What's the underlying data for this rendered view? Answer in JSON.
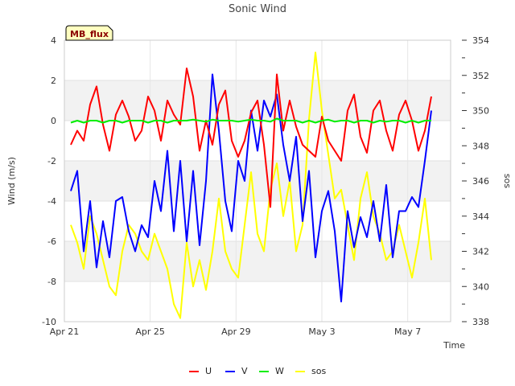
{
  "chart_data": {
    "type": "line",
    "title": "Sonic Wind",
    "badge": "MB_flux",
    "xlabel": "Time",
    "ylabel": "Wind (m/s)",
    "ylabel_right": "sos",
    "x_ticks": [
      {
        "day": 0,
        "label": "Apr 21"
      },
      {
        "day": 4,
        "label": "Apr 25"
      },
      {
        "day": 8,
        "label": "Apr 29"
      },
      {
        "day": 12,
        "label": "May 3"
      },
      {
        "day": 16,
        "label": "May 7"
      }
    ],
    "xlim": [
      0,
      18
    ],
    "ylim": [
      -10,
      4
    ],
    "ylim_right": [
      338,
      354
    ],
    "y_ticks": [
      4,
      2,
      0,
      -2,
      -4,
      -6,
      -8,
      -10
    ],
    "y_ticks_right": [
      354,
      352,
      350,
      348,
      346,
      344,
      342,
      340,
      338
    ],
    "grid_bands": [
      [
        -8,
        -6
      ],
      [
        -4,
        -2
      ],
      [
        0,
        2
      ]
    ],
    "legend": [
      "U",
      "V",
      "W",
      "sos"
    ],
    "series": [
      {
        "name": "U",
        "color": "#ff0000",
        "axis": "left",
        "x": [
          0.3,
          0.6,
          0.9,
          1.2,
          1.5,
          1.8,
          2.1,
          2.4,
          2.7,
          3.0,
          3.3,
          3.6,
          3.9,
          4.2,
          4.5,
          4.8,
          5.1,
          5.4,
          5.7,
          6.0,
          6.3,
          6.6,
          6.9,
          7.2,
          7.5,
          7.8,
          8.1,
          8.4,
          8.7,
          9.0,
          9.3,
          9.6,
          9.9,
          10.2,
          10.5,
          10.8,
          11.1,
          11.4,
          11.7,
          12.0,
          12.3,
          12.6,
          12.9,
          13.2,
          13.5,
          13.8,
          14.1,
          14.4,
          14.7,
          15.0,
          15.3,
          15.6,
          15.9,
          16.2,
          16.5,
          16.8,
          17.1
        ],
        "values": [
          -1.2,
          -0.5,
          -1.0,
          0.8,
          1.7,
          -0.2,
          -1.5,
          0.3,
          1.0,
          0.2,
          -1.0,
          -0.5,
          1.2,
          0.5,
          -1.0,
          1.0,
          0.3,
          -0.2,
          2.6,
          1.2,
          -1.5,
          0.0,
          -1.2,
          0.8,
          1.5,
          -1.0,
          -1.8,
          -1.0,
          0.4,
          1.0,
          -1.2,
          -4.3,
          2.3,
          -0.5,
          1.0,
          -0.3,
          -1.2,
          -1.5,
          -1.8,
          0.2,
          -1.0,
          -1.5,
          -2.0,
          0.5,
          1.3,
          -0.8,
          -1.6,
          0.5,
          1.0,
          -0.5,
          -1.5,
          0.3,
          1.0,
          0.0,
          -1.5,
          -0.5,
          1.2
        ]
      },
      {
        "name": "V",
        "color": "#0000ff",
        "axis": "left",
        "x": [
          0.3,
          0.6,
          0.9,
          1.2,
          1.5,
          1.8,
          2.1,
          2.4,
          2.7,
          3.0,
          3.3,
          3.6,
          3.9,
          4.2,
          4.5,
          4.8,
          5.1,
          5.4,
          5.7,
          6.0,
          6.3,
          6.6,
          6.9,
          7.2,
          7.5,
          7.8,
          8.1,
          8.4,
          8.7,
          9.0,
          9.3,
          9.6,
          9.9,
          10.2,
          10.5,
          10.8,
          11.1,
          11.4,
          11.7,
          12.0,
          12.3,
          12.6,
          12.9,
          13.2,
          13.5,
          13.8,
          14.1,
          14.4,
          14.7,
          15.0,
          15.3,
          15.6,
          15.9,
          16.2,
          16.5,
          16.8,
          17.1
        ],
        "values": [
          -3.5,
          -2.5,
          -6.5,
          -4.0,
          -7.3,
          -5.0,
          -6.8,
          -4.0,
          -3.8,
          -5.5,
          -6.5,
          -5.2,
          -5.8,
          -3.0,
          -4.5,
          -1.5,
          -5.5,
          -2.0,
          -6.0,
          -2.5,
          -6.2,
          -3.0,
          2.3,
          -0.5,
          -4.0,
          -5.5,
          -2.0,
          -3.0,
          0.5,
          -1.5,
          1.0,
          0.2,
          1.3,
          -1.2,
          -3.0,
          -0.8,
          -5.0,
          -2.5,
          -6.8,
          -4.5,
          -3.5,
          -5.5,
          -9.0,
          -4.5,
          -6.3,
          -4.8,
          -5.8,
          -4.0,
          -6.0,
          -3.2,
          -6.8,
          -4.5,
          -4.5,
          -3.8,
          -4.3,
          -2.0,
          0.5
        ]
      },
      {
        "name": "W",
        "color": "#00ee00",
        "axis": "left",
        "x": [
          0.3,
          0.6,
          0.9,
          1.2,
          1.5,
          1.8,
          2.1,
          2.4,
          2.7,
          3.0,
          3.3,
          3.6,
          3.9,
          4.2,
          4.5,
          4.8,
          5.1,
          5.4,
          5.7,
          6.0,
          6.3,
          6.6,
          6.9,
          7.2,
          7.5,
          7.8,
          8.1,
          8.4,
          8.7,
          9.0,
          9.3,
          9.6,
          9.9,
          10.2,
          10.5,
          10.8,
          11.1,
          11.4,
          11.7,
          12.0,
          12.3,
          12.6,
          12.9,
          13.2,
          13.5,
          13.8,
          14.1,
          14.4,
          14.7,
          15.0,
          15.3,
          15.6,
          15.9,
          16.2,
          16.5,
          16.8,
          17.1
        ],
        "values": [
          -0.1,
          0.0,
          -0.1,
          0.0,
          0.0,
          -0.1,
          0.0,
          0.0,
          -0.1,
          0.0,
          0.0,
          0.0,
          -0.1,
          0.0,
          0.0,
          -0.1,
          0.0,
          0.0,
          0.0,
          0.05,
          0.0,
          -0.05,
          0.05,
          0.0,
          0.0,
          0.0,
          -0.05,
          0.0,
          0.05,
          0.0,
          0.0,
          -0.05,
          0.1,
          0.0,
          0.0,
          0.0,
          -0.1,
          0.0,
          -0.1,
          0.0,
          0.05,
          -0.05,
          0.0,
          0.0,
          -0.1,
          0.0,
          0.0,
          -0.1,
          0.0,
          -0.05,
          0.0,
          0.0,
          -0.1,
          0.0,
          -0.1,
          0.0,
          0.0
        ]
      },
      {
        "name": "sos",
        "color": "#ffff00",
        "axis": "right",
        "x": [
          0.3,
          0.6,
          0.9,
          1.2,
          1.5,
          1.8,
          2.1,
          2.4,
          2.7,
          3.0,
          3.3,
          3.6,
          3.9,
          4.2,
          4.5,
          4.8,
          5.1,
          5.4,
          5.7,
          6.0,
          6.3,
          6.6,
          6.9,
          7.2,
          7.5,
          7.8,
          8.1,
          8.4,
          8.7,
          9.0,
          9.3,
          9.6,
          9.9,
          10.2,
          10.5,
          10.8,
          11.1,
          11.4,
          11.7,
          12.0,
          12.3,
          12.6,
          12.9,
          13.2,
          13.5,
          13.8,
          14.1,
          14.4,
          14.7,
          15.0,
          15.3,
          15.6,
          15.9,
          16.2,
          16.5,
          16.8,
          17.1
        ],
        "values": [
          343.5,
          342.5,
          341.0,
          344.0,
          343.0,
          341.5,
          340.0,
          339.5,
          342.0,
          343.5,
          343.0,
          342.0,
          341.5,
          343.0,
          342.0,
          341.0,
          339.0,
          338.2,
          342.5,
          340.0,
          341.5,
          339.8,
          342.0,
          345.0,
          342.0,
          341.0,
          340.5,
          343.5,
          346.5,
          343.0,
          342.0,
          345.5,
          347.0,
          344.0,
          346.0,
          342.0,
          343.5,
          349.5,
          353.3,
          350.0,
          347.5,
          345.0,
          345.5,
          343.5,
          341.5,
          345.0,
          346.5,
          344.0,
          343.0,
          341.5,
          342.0,
          343.5,
          342.0,
          340.5,
          342.5,
          345.0,
          341.5
        ]
      }
    ]
  }
}
